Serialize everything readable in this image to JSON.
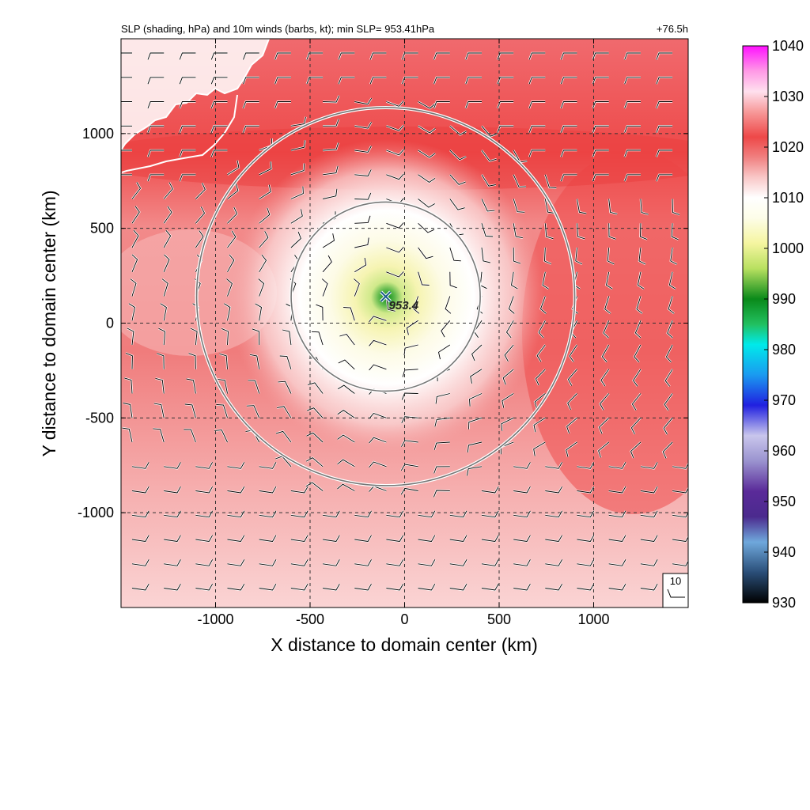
{
  "chart_data": {
    "type": "heatmap",
    "title_left": "SLP (shading, hPa) and 10m winds (barbs, kt); min SLP= 953.41hPa",
    "title_right": "+76.5h",
    "xlabel": "X distance to domain center (km)",
    "ylabel": "Y distance to domain center (km)",
    "xlim": [
      -1500,
      1500
    ],
    "ylim": [
      -1500,
      1500
    ],
    "xticks": [
      -1000,
      -500,
      0,
      500,
      1000
    ],
    "xtick_labels": [
      "-1000",
      "-500",
      "0",
      "500",
      "1000"
    ],
    "yticks": [
      1000,
      500,
      0,
      -500,
      -1000
    ],
    "ytick_labels": [
      "1000",
      "500",
      "0",
      "-500",
      "-1000"
    ],
    "grid": true,
    "min_slp_hpa": 953.41,
    "center": {
      "x": -100,
      "y": 140,
      "label": "953.4"
    },
    "range_rings_km": [
      500,
      1000
    ],
    "colorbar": {
      "min": 930,
      "max": 1040,
      "ticks": [
        1040,
        1030,
        1020,
        1010,
        1000,
        990,
        980,
        970,
        960,
        950,
        940,
        930
      ],
      "tick_labels": [
        "1040",
        "1030",
        "1020",
        "1010",
        "1000",
        "990",
        "980",
        "970",
        "960",
        "950",
        "940",
        "930"
      ],
      "colors": [
        {
          "v": 930,
          "c": "#000000"
        },
        {
          "v": 936,
          "c": "#2a4e78"
        },
        {
          "v": 942,
          "c": "#6fa8dc"
        },
        {
          "v": 947,
          "c": "#4b2a8e"
        },
        {
          "v": 952,
          "c": "#5a2a99"
        },
        {
          "v": 958,
          "c": "#9a93cf"
        },
        {
          "v": 963,
          "c": "#c9c6ec"
        },
        {
          "v": 969,
          "c": "#2020e0"
        },
        {
          "v": 975,
          "c": "#1a9af0"
        },
        {
          "v": 981,
          "c": "#00eaea"
        },
        {
          "v": 985,
          "c": "#22c060"
        },
        {
          "v": 990,
          "c": "#0a8a1a"
        },
        {
          "v": 996,
          "c": "#b8e060"
        },
        {
          "v": 1001,
          "c": "#f5f5a0"
        },
        {
          "v": 1006,
          "c": "#fdfde8"
        },
        {
          "v": 1010,
          "c": "#ffffff"
        },
        {
          "v": 1014,
          "c": "#f9c8c8"
        },
        {
          "v": 1018,
          "c": "#f08080"
        },
        {
          "v": 1022,
          "c": "#ee4848"
        },
        {
          "v": 1027,
          "c": "#f79a9a"
        },
        {
          "v": 1031,
          "c": "#ffe0ee"
        },
        {
          "v": 1035,
          "c": "#ff9ae6"
        },
        {
          "v": 1040,
          "c": "#ff10ff"
        }
      ]
    },
    "reference_barb": {
      "label": "10",
      "speed_kt": 10
    }
  }
}
